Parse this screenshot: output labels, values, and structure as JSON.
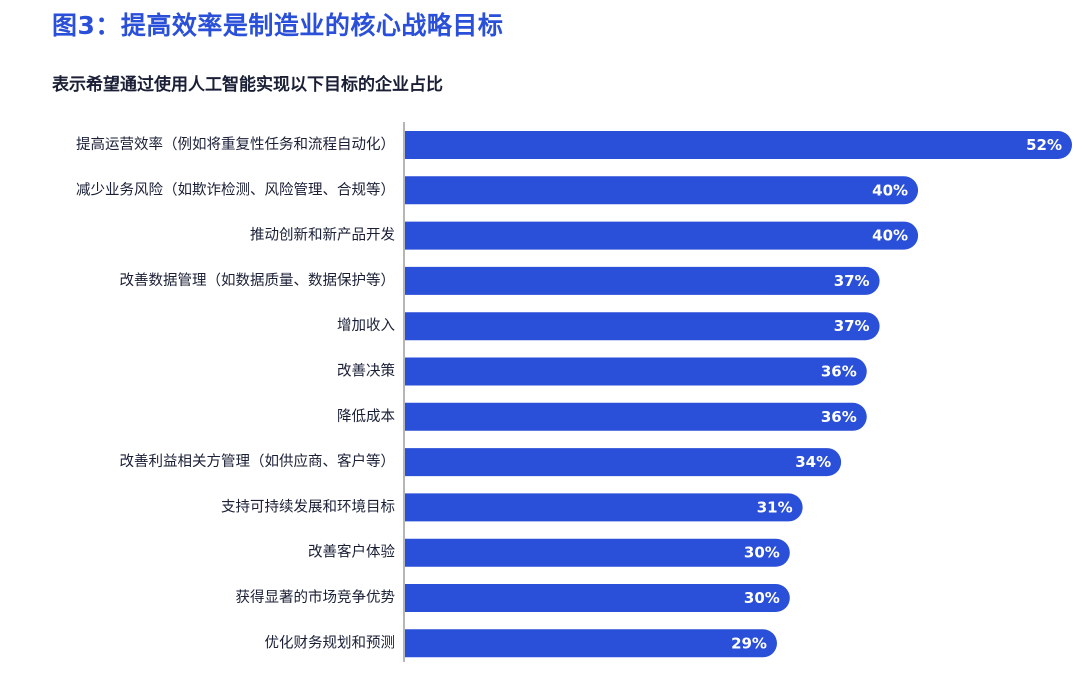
{
  "title": "图3：提高效率是制造业的核心战略目标",
  "subtitle": "表示希望通过使用人工智能实现以下目标的企业占比",
  "colors": {
    "bar": "#2a4fd8",
    "title": "#2a4fd8",
    "axis": "#6e6e6e"
  },
  "chart_data": {
    "type": "bar",
    "orientation": "horizontal",
    "categories": [
      "提高运营效率（例如将重复性任务和流程自动化）",
      "减少业务风险（如欺诈检测、风险管理、合规等）",
      "推动创新和新产品开发",
      "改善数据管理（如数据质量、数据保护等）",
      "增加收入",
      "改善决策",
      "降低成本",
      "改善利益相关方管理（如供应商、客户等）",
      "支持可持续发展和环境目标",
      "改善客户体验",
      "获得显著的市场竞争优势",
      "优化财务规划和预测"
    ],
    "values": [
      52,
      40,
      40,
      37,
      37,
      36,
      36,
      34,
      31,
      30,
      30,
      29
    ],
    "value_labels": [
      "52%",
      "40%",
      "40%",
      "37%",
      "37%",
      "36%",
      "36%",
      "34%",
      "31%",
      "30%",
      "30%",
      "29%"
    ],
    "xlim": [
      0,
      52
    ],
    "unit": "%",
    "grid": false,
    "legend": "none"
  }
}
